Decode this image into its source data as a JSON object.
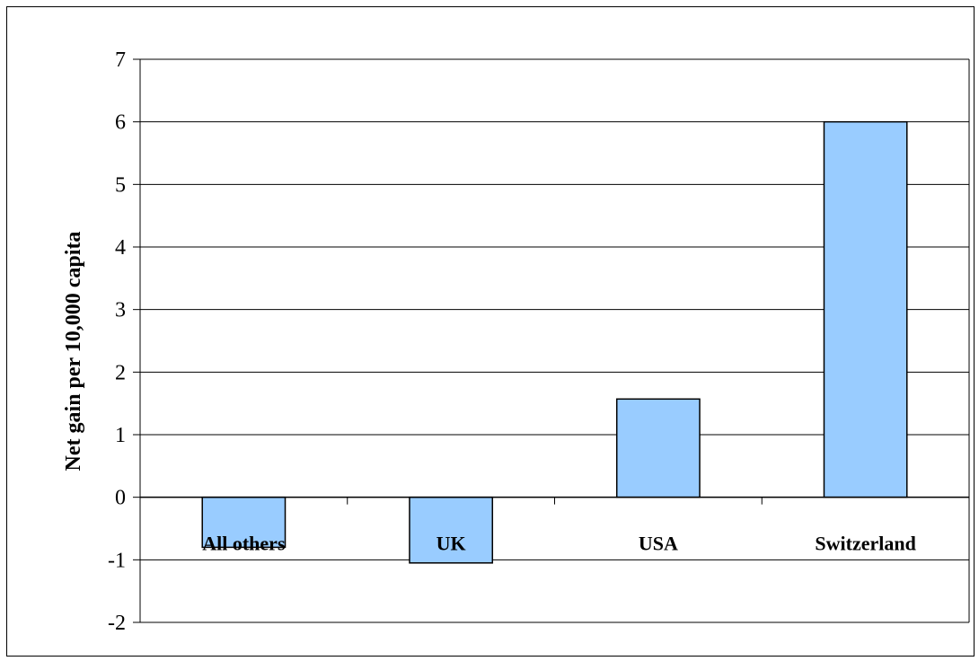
{
  "chart_data": {
    "type": "bar",
    "categories": [
      "All others",
      "UK",
      "USA",
      "Switzerland"
    ],
    "values": [
      -0.8,
      -1.05,
      1.57,
      6.0
    ],
    "ylabel": "Net gain per 10,000 capita",
    "xlabel": "",
    "ylim": [
      -2,
      7
    ],
    "yticks": [
      -2,
      -1,
      0,
      1,
      2,
      3,
      4,
      5,
      6,
      7
    ],
    "grid": true,
    "bar_color": "#99ccff",
    "bar_outline": "#000000"
  }
}
